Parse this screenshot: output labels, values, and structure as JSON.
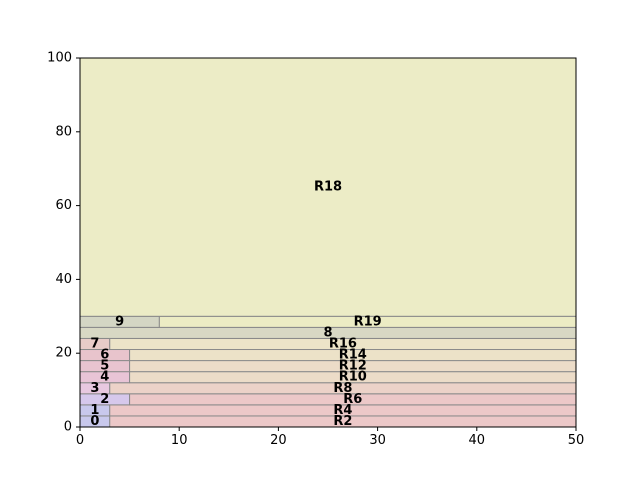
{
  "chart_data": {
    "type": "treemap",
    "title": "",
    "xlabel": "",
    "ylabel": "",
    "xlim": [
      0,
      50
    ],
    "ylim": [
      0,
      100
    ],
    "xticks": [
      0,
      10,
      20,
      30,
      40,
      50
    ],
    "yticks": [
      0,
      20,
      40,
      60,
      80,
      100
    ],
    "grid": false,
    "rects": [
      {
        "label": "0",
        "x": 0,
        "y": 0,
        "w": 3,
        "h": 3,
        "color": "#c8c8ec"
      },
      {
        "label": "R2",
        "x": 3,
        "y": 0,
        "w": 47,
        "h": 3,
        "color": "#ecc8c8"
      },
      {
        "label": "1",
        "x": 0,
        "y": 3,
        "w": 3,
        "h": 3,
        "color": "#c8c8ec"
      },
      {
        "label": "R4",
        "x": 3,
        "y": 3,
        "w": 47,
        "h": 3,
        "color": "#ecc8c8"
      },
      {
        "label": "2",
        "x": 0,
        "y": 6,
        "w": 5,
        "h": 3,
        "color": "#d6c8ec"
      },
      {
        "label": "R6",
        "x": 5,
        "y": 6,
        "w": 45,
        "h": 3,
        "color": "#ecc8c8"
      },
      {
        "label": "3",
        "x": 0,
        "y": 9,
        "w": 3,
        "h": 3,
        "color": "#e8c8e0"
      },
      {
        "label": "R8",
        "x": 3,
        "y": 9,
        "w": 47,
        "h": 3,
        "color": "#ecd2c8"
      },
      {
        "label": "4",
        "x": 0,
        "y": 12,
        "w": 5,
        "h": 3,
        "color": "#e8c4d6"
      },
      {
        "label": "R10",
        "x": 5,
        "y": 12,
        "w": 45,
        "h": 3,
        "color": "#ecdcc8"
      },
      {
        "label": "5",
        "x": 0,
        "y": 15,
        "w": 5,
        "h": 3,
        "color": "#e8c4d0"
      },
      {
        "label": "R12",
        "x": 5,
        "y": 15,
        "w": 45,
        "h": 3,
        "color": "#ecdcc8"
      },
      {
        "label": "6",
        "x": 0,
        "y": 18,
        "w": 5,
        "h": 3,
        "color": "#e8c4cc"
      },
      {
        "label": "R14",
        "x": 5,
        "y": 18,
        "w": 45,
        "h": 3,
        "color": "#ece2c8"
      },
      {
        "label": "7",
        "x": 0,
        "y": 21,
        "w": 3,
        "h": 3,
        "color": "#e8ccc8"
      },
      {
        "label": "R16",
        "x": 3,
        "y": 21,
        "w": 47,
        "h": 3,
        "color": "#ece4c8"
      },
      {
        "label": "8",
        "x": 0,
        "y": 24,
        "w": 50,
        "h": 3,
        "color": "#d8d8c4"
      },
      {
        "label": "9",
        "x": 0,
        "y": 27,
        "w": 8,
        "h": 3,
        "color": "#d4d6c4"
      },
      {
        "label": "R19",
        "x": 8,
        "y": 27,
        "w": 42,
        "h": 3,
        "color": "#ececc4"
      },
      {
        "label": "R18",
        "x": 0,
        "y": 30,
        "w": 50,
        "h": 70,
        "color": "#ececc6"
      }
    ]
  }
}
